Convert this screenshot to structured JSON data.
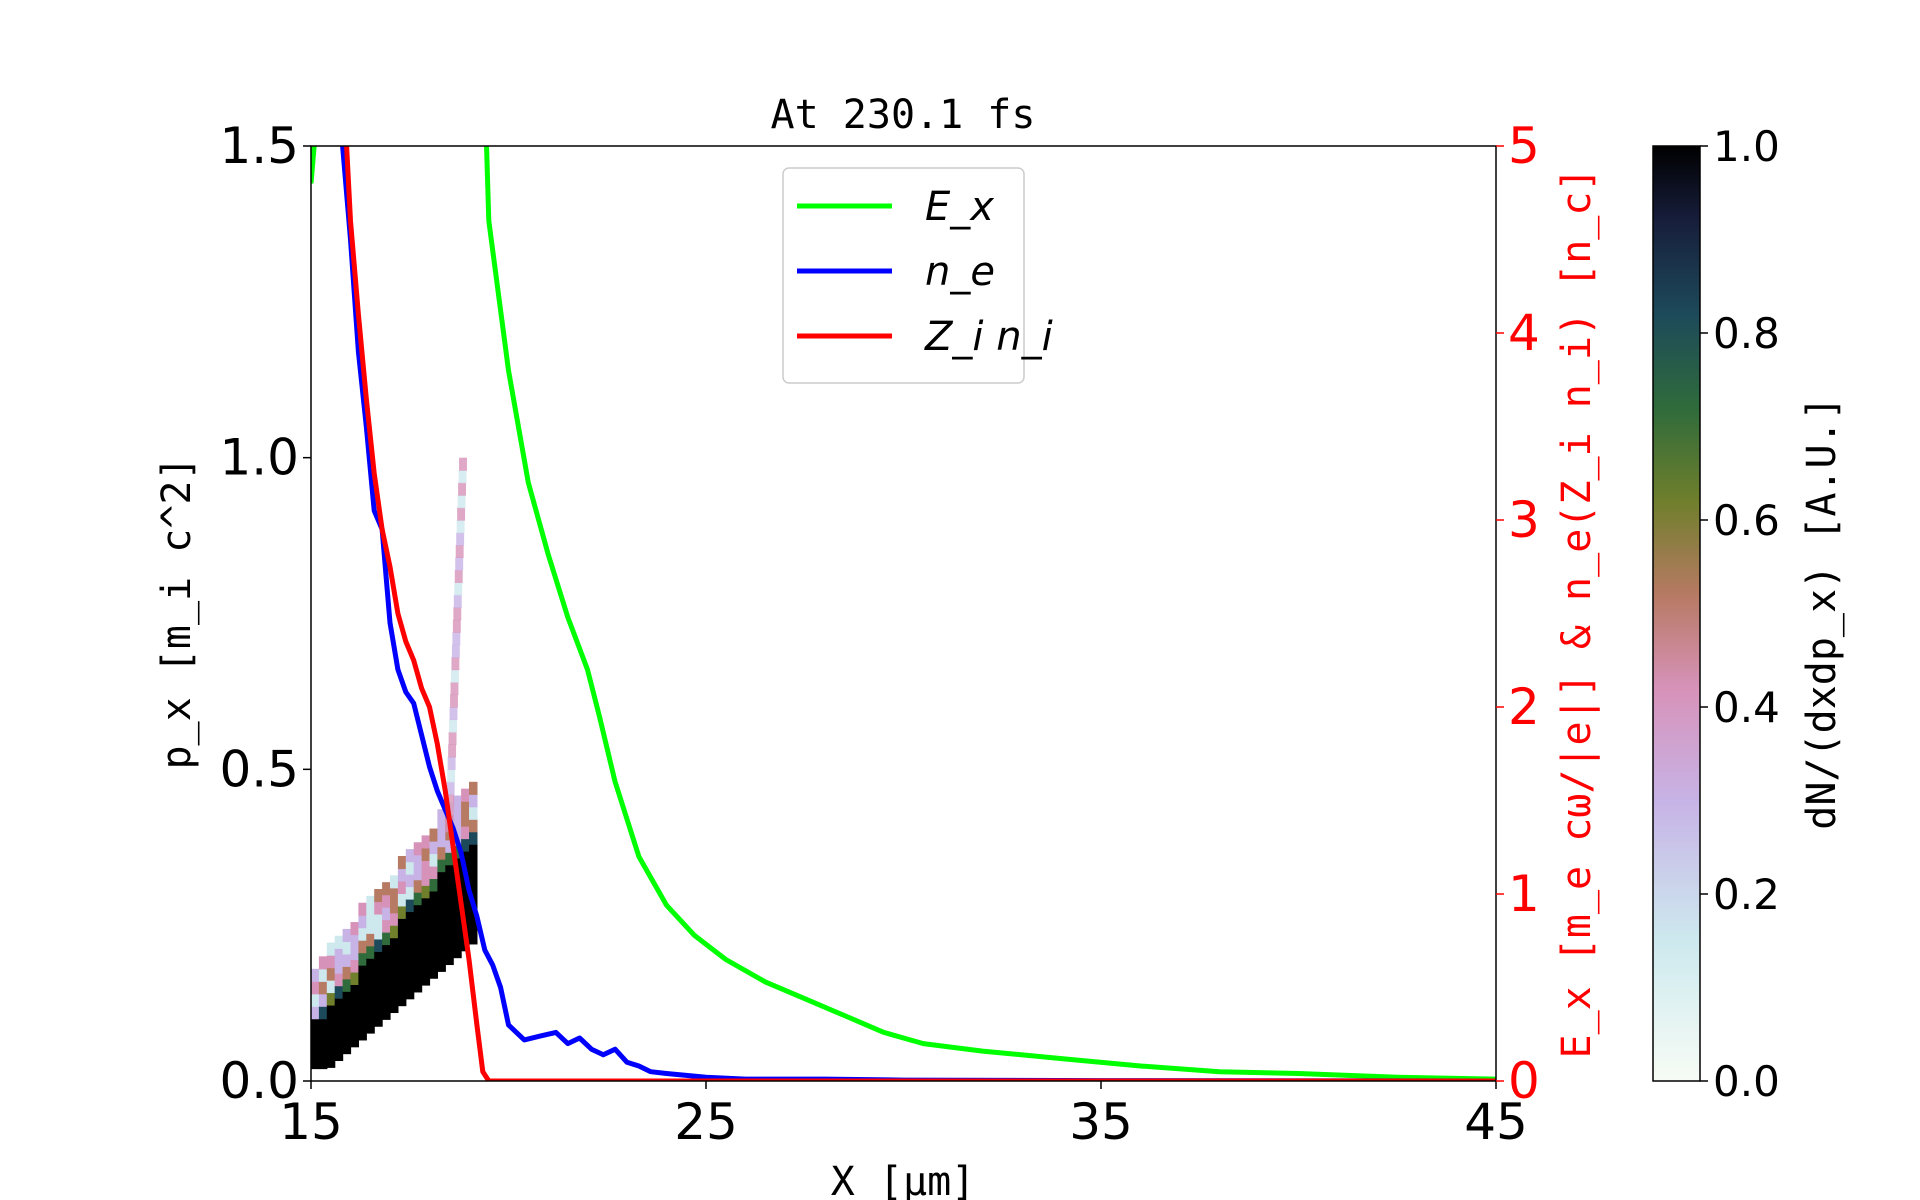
{
  "chart_data": {
    "type": "line",
    "title": "At 230.1 fs",
    "xlabel": "X [μm]",
    "ylabel_left": "p_x [m_i c^2]",
    "ylabel_right": "E_x [m_e cω/|e|] & n_e(Z_i n_i) [n_c]",
    "colorbar_label": "dN/(dxdp_x) [A.U.]",
    "xlim": [
      15,
      45
    ],
    "ylim_left": [
      0,
      1.5
    ],
    "ylim_right": [
      0,
      5
    ],
    "colorbar_lim": [
      0,
      1
    ],
    "x_ticks": [
      "15",
      "25",
      "35",
      "45"
    ],
    "y_left_ticks": [
      "0.0",
      "0.5",
      "1.0",
      "1.5"
    ],
    "y_right_ticks": [
      "0",
      "1",
      "2",
      "3",
      "4",
      "5"
    ],
    "colorbar_ticks": [
      "0.0",
      "0.2",
      "0.4",
      "0.6",
      "0.8",
      "1.0"
    ],
    "legend": {
      "placement": "upper center",
      "entries": [
        {
          "label": "E_x",
          "color": "#00ff00"
        },
        {
          "label": "n_e",
          "color": "#0000ff"
        },
        {
          "label": "Z_i n_i",
          "color": "#ff0000"
        }
      ]
    },
    "series": [
      {
        "name": "E_x",
        "axis": "right",
        "color": "#00ff00",
        "x": [
          15.0,
          15.2,
          15.5,
          19.3,
          19.5,
          20.0,
          20.5,
          21.0,
          21.5,
          22.0,
          22.3,
          22.7,
          23.3,
          24.0,
          24.7,
          25.5,
          26.5,
          27.5,
          28.5,
          29.5,
          30.5,
          32.0,
          34.0,
          36.0,
          38.0,
          40.0,
          42.5,
          45.0
        ],
        "values": [
          4.8,
          5.3,
          6.0,
          6.0,
          4.6,
          3.8,
          3.2,
          2.82,
          2.48,
          2.2,
          1.95,
          1.6,
          1.2,
          0.94,
          0.78,
          0.65,
          0.53,
          0.44,
          0.35,
          0.26,
          0.2,
          0.16,
          0.12,
          0.08,
          0.05,
          0.04,
          0.02,
          0.01
        ]
      },
      {
        "name": "n_e",
        "axis": "right",
        "color": "#0000ff",
        "x": [
          15.8,
          16.0,
          16.2,
          16.4,
          16.6,
          16.8,
          17.0,
          17.2,
          17.4,
          17.6,
          17.8,
          18.0,
          18.2,
          18.4,
          18.6,
          18.8,
          19.0,
          19.2,
          19.4,
          19.6,
          19.8,
          20.0,
          20.4,
          20.8,
          21.2,
          21.5,
          21.8,
          22.1,
          22.4,
          22.7,
          23.0,
          23.3,
          23.6,
          24.0,
          25.0,
          26.0,
          28.0,
          30.0,
          35.0,
          45.0
        ],
        "values": [
          5.0,
          4.5,
          3.9,
          3.5,
          3.05,
          2.95,
          2.45,
          2.2,
          2.08,
          2.02,
          1.85,
          1.68,
          1.55,
          1.45,
          1.35,
          1.22,
          1.02,
          0.88,
          0.7,
          0.62,
          0.5,
          0.3,
          0.22,
          0.24,
          0.26,
          0.2,
          0.23,
          0.17,
          0.14,
          0.17,
          0.1,
          0.08,
          0.05,
          0.04,
          0.02,
          0.01,
          0.01,
          0.005,
          0.002,
          0.0
        ]
      },
      {
        "name": "Z_i n_i",
        "axis": "right",
        "color": "#ff0000",
        "x": [
          15.9,
          16.0,
          16.2,
          16.4,
          16.6,
          16.8,
          17.0,
          17.2,
          17.4,
          17.6,
          17.8,
          18.0,
          18.2,
          18.4,
          18.6,
          18.8,
          19.0,
          19.2,
          19.35,
          19.5,
          20.0,
          25.0,
          35.0,
          45.0
        ],
        "values": [
          5.0,
          4.6,
          4.1,
          3.65,
          3.25,
          2.95,
          2.75,
          2.5,
          2.35,
          2.25,
          2.1,
          2.0,
          1.8,
          1.55,
          1.25,
          0.95,
          0.65,
          0.3,
          0.05,
          0.0,
          0.0,
          0.0,
          0.0,
          0.0
        ]
      }
    ],
    "heatmap": {
      "description_axis": "left",
      "x_range": [
        15.0,
        19.1
      ],
      "y_range": [
        0.0,
        1.0
      ],
      "value_range": [
        0,
        1
      ]
    }
  }
}
